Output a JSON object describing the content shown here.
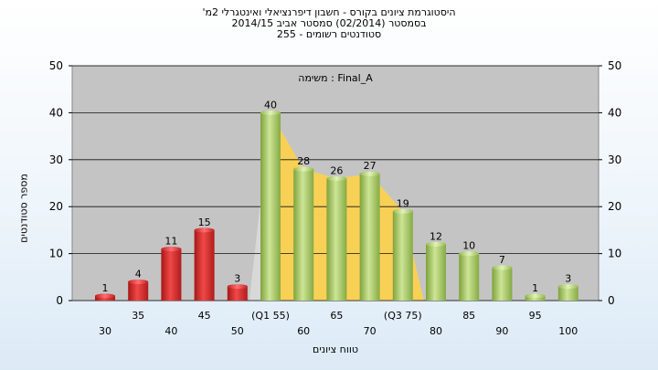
{
  "title_lines": [
    "היסטוגרמת ציונים בקורס - חשבון דיפרנציאלי ואינטגרלי 2מ'",
    "בסמסטר  (02/2014)  סמסטר אביב 2014/15",
    "סטודנטים רשומים - 255"
  ],
  "chart_data": {
    "type": "bar",
    "ylabel": "מספר סטודנטים",
    "xlabel": "טווח ציונים",
    "annotation": "משימה : Final_A",
    "ylim": [
      0,
      50
    ],
    "yticks": [
      0,
      10,
      20,
      30,
      40,
      50
    ],
    "grid": true,
    "categories": [
      "30",
      "35",
      "40",
      "45",
      "50",
      "(Q1 55)",
      "60",
      "65",
      "70",
      "(Q3 75)",
      "80",
      "85",
      "90",
      "95",
      "100"
    ],
    "values": [
      1,
      4,
      11,
      15,
      3,
      40,
      28,
      26,
      27,
      19,
      12,
      10,
      7,
      1,
      3
    ],
    "bar_colors": [
      "red",
      "red",
      "red",
      "red",
      "red",
      "green",
      "green",
      "green",
      "green",
      "green",
      "green",
      "green",
      "green",
      "green",
      "green"
    ],
    "interquartile_band": {
      "from": "(Q1 55)",
      "to": "(Q3 75)",
      "color": "#ffd24a"
    },
    "colors": {
      "red": "#d42a2a",
      "green": "#9cc25a",
      "plot_bg": "#c4c4c4"
    }
  }
}
